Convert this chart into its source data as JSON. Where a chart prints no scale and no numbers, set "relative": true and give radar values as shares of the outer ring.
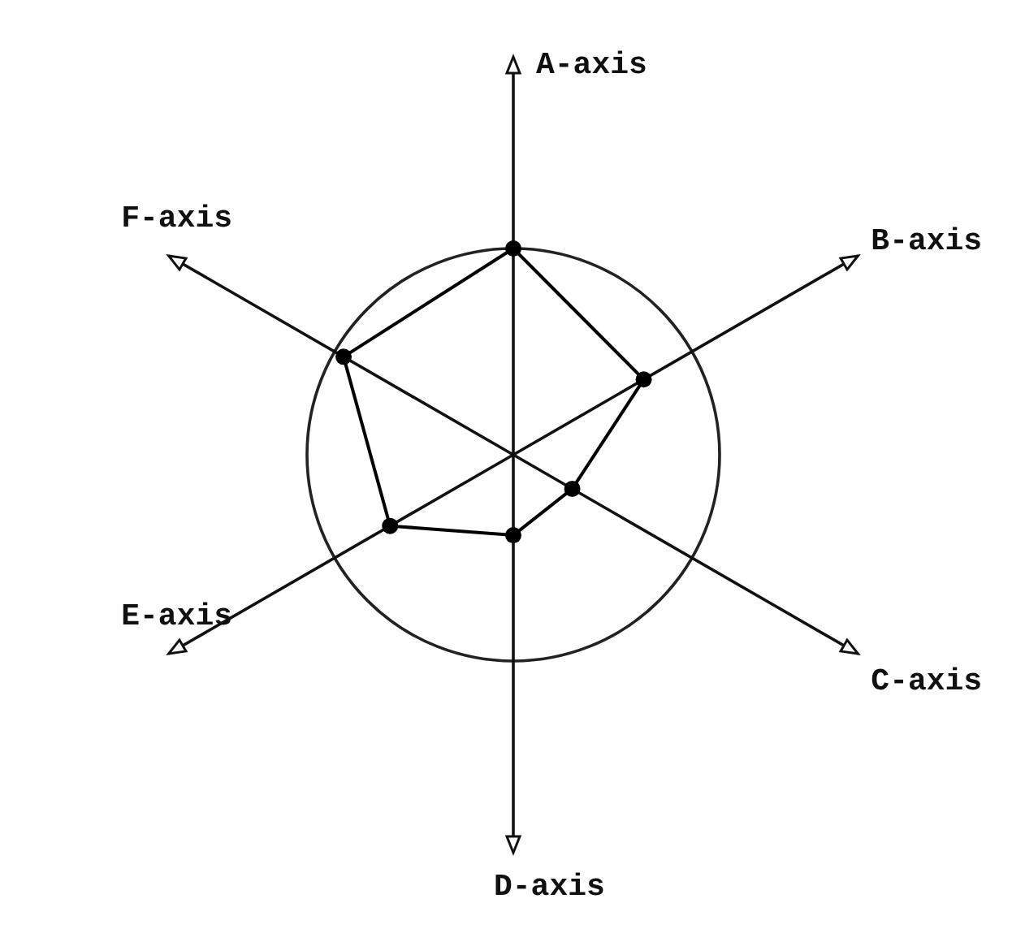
{
  "chart_data": {
    "type": "radar",
    "relative": true,
    "categories": [
      "A-axis",
      "B-axis",
      "C-axis",
      "D-axis",
      "E-axis",
      "F-axis"
    ],
    "series": [
      {
        "color": "#000000",
        "values": [
          1,
          0.73,
          0.33,
          0.39,
          0.69,
          0.95
        ]
      }
    ],
    "marker": "circle",
    "grid": true
  }
}
